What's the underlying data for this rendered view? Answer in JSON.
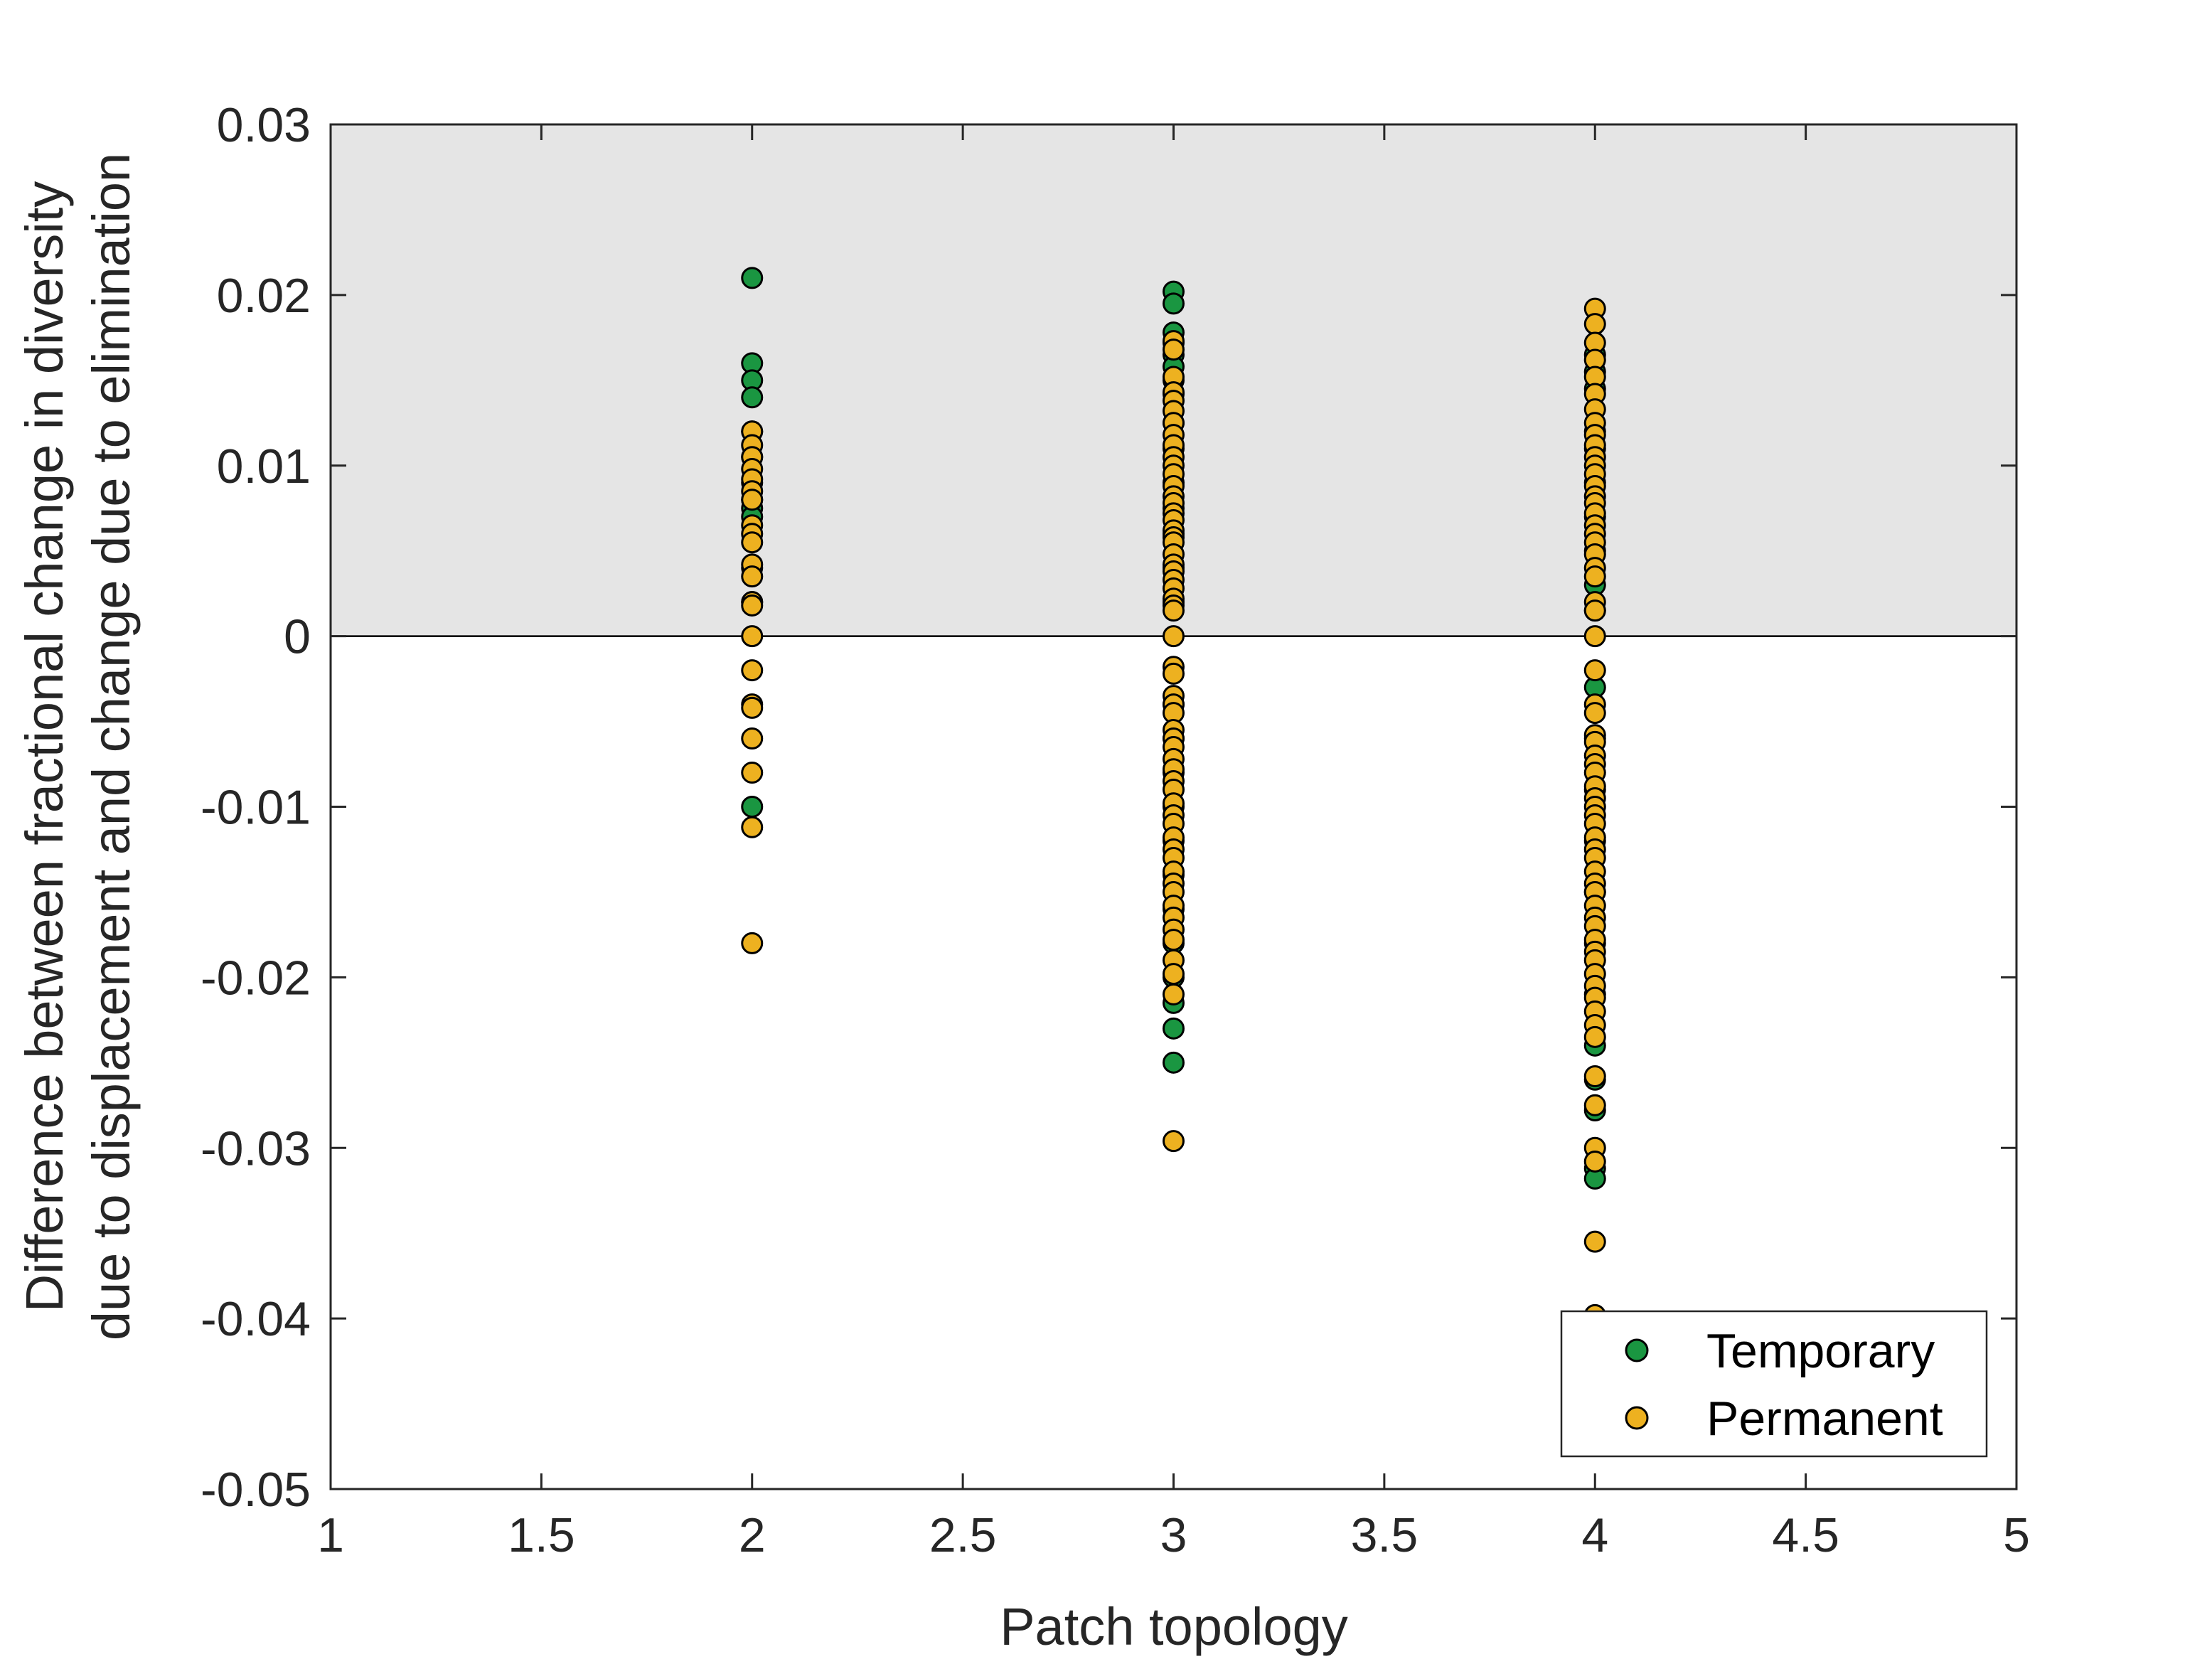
{
  "chart_data": {
    "type": "scatter",
    "title": "",
    "xlabel": "Patch topology",
    "ylabel_lines": [
      "Difference between fractional change in diversity",
      "due to displacement and change due to elimination"
    ],
    "xlim": [
      1,
      5
    ],
    "ylim": [
      -0.05,
      0.03
    ],
    "xticks": [
      1,
      1.5,
      2,
      2.5,
      3,
      3.5,
      4,
      4.5,
      5
    ],
    "xtick_labels": [
      "1",
      "1.5",
      "2",
      "2.5",
      "3",
      "3.5",
      "4",
      "4.5",
      "5"
    ],
    "yticks": [
      -0.05,
      -0.04,
      -0.03,
      -0.02,
      -0.01,
      0,
      0.01,
      0.02,
      0.03
    ],
    "ytick_labels": [
      "-0.05",
      "-0.04",
      "-0.03",
      "-0.02",
      "-0.01",
      "0",
      "0.01",
      "0.02",
      "0.03"
    ],
    "shaded_region": {
      "y_from": 0,
      "y_to": 0.03,
      "color": "#e5e5e5"
    },
    "reference_line_y": 0,
    "legend_position": "bottom-right",
    "grid": false,
    "series": [
      {
        "name": "Temporary",
        "color": "#1a9641",
        "points": [
          [
            2,
            0.021
          ],
          [
            2,
            0.016
          ],
          [
            2,
            0.015
          ],
          [
            2,
            0.014
          ],
          [
            2,
            0.012
          ],
          [
            2,
            0.0105
          ],
          [
            2,
            0.009
          ],
          [
            2,
            0.008
          ],
          [
            2,
            0.0075
          ],
          [
            2,
            0.007
          ],
          [
            2,
            0.004
          ],
          [
            2,
            0.002
          ],
          [
            2,
            -0.01
          ],
          [
            3,
            0.0202
          ],
          [
            3,
            0.0195
          ],
          [
            3,
            0.0178
          ],
          [
            3,
            0.0172
          ],
          [
            3,
            0.0165
          ],
          [
            3,
            0.0158
          ],
          [
            3,
            0.015
          ],
          [
            3,
            0.0142
          ],
          [
            3,
            0.0125
          ],
          [
            3,
            0.011
          ],
          [
            3,
            0.009
          ],
          [
            3,
            0.0075
          ],
          [
            3,
            0.006
          ],
          [
            3,
            0.004
          ],
          [
            3,
            0.002
          ],
          [
            3,
            -0.004
          ],
          [
            3,
            -0.006
          ],
          [
            3,
            -0.008
          ],
          [
            3,
            -0.01
          ],
          [
            3,
            -0.012
          ],
          [
            3,
            -0.014
          ],
          [
            3,
            -0.016
          ],
          [
            3,
            -0.018
          ],
          [
            3,
            -0.02
          ],
          [
            3,
            -0.0215
          ],
          [
            3,
            -0.023
          ],
          [
            3,
            -0.025
          ],
          [
            4,
            0.0165
          ],
          [
            4,
            0.0155
          ],
          [
            4,
            0.0145
          ],
          [
            4,
            0.012
          ],
          [
            4,
            0.011
          ],
          [
            4,
            0.009
          ],
          [
            4,
            0.007
          ],
          [
            4,
            0.005
          ],
          [
            4,
            0.003
          ],
          [
            4,
            0.0015
          ],
          [
            4,
            -0.003
          ],
          [
            4,
            -0.006
          ],
          [
            4,
            -0.009
          ],
          [
            4,
            -0.012
          ],
          [
            4,
            -0.015
          ],
          [
            4,
            -0.018
          ],
          [
            4,
            -0.021
          ],
          [
            4,
            -0.024
          ],
          [
            4,
            -0.026
          ],
          [
            4,
            -0.0278
          ],
          [
            4,
            -0.0312
          ],
          [
            4,
            -0.0318
          ]
        ]
      },
      {
        "name": "Permanent",
        "color": "#edb120",
        "points": [
          [
            2,
            0.012
          ],
          [
            2,
            0.0112
          ],
          [
            2,
            0.0105
          ],
          [
            2,
            0.0098
          ],
          [
            2,
            0.0092
          ],
          [
            2,
            0.0085
          ],
          [
            2,
            0.008
          ],
          [
            2,
            0.0065
          ],
          [
            2,
            0.006
          ],
          [
            2,
            0.0055
          ],
          [
            2,
            0.0042
          ],
          [
            2,
            0.0035
          ],
          [
            2,
            0.002
          ],
          [
            2,
            0.0018
          ],
          [
            2,
            0.0
          ],
          [
            2,
            -0.002
          ],
          [
            2,
            -0.004
          ],
          [
            2,
            -0.0042
          ],
          [
            2,
            -0.006
          ],
          [
            2,
            -0.008
          ],
          [
            2,
            -0.0112
          ],
          [
            2,
            -0.018
          ],
          [
            3,
            0.0173
          ],
          [
            3,
            0.0168
          ],
          [
            3,
            0.0152
          ],
          [
            3,
            0.0143
          ],
          [
            3,
            0.0138
          ],
          [
            3,
            0.0132
          ],
          [
            3,
            0.0125
          ],
          [
            3,
            0.0118
          ],
          [
            3,
            0.0112
          ],
          [
            3,
            0.0105
          ],
          [
            3,
            0.01
          ],
          [
            3,
            0.0095
          ],
          [
            3,
            0.0088
          ],
          [
            3,
            0.0082
          ],
          [
            3,
            0.0078
          ],
          [
            3,
            0.0072
          ],
          [
            3,
            0.0068
          ],
          [
            3,
            0.0062
          ],
          [
            3,
            0.0058
          ],
          [
            3,
            0.0055
          ],
          [
            3,
            0.0048
          ],
          [
            3,
            0.0042
          ],
          [
            3,
            0.0038
          ],
          [
            3,
            0.0033
          ],
          [
            3,
            0.0028
          ],
          [
            3,
            0.0022
          ],
          [
            3,
            0.0018
          ],
          [
            3,
            0.0015
          ],
          [
            3,
            0.0
          ],
          [
            3,
            -0.0018
          ],
          [
            3,
            -0.0022
          ],
          [
            3,
            -0.0035
          ],
          [
            3,
            -0.004
          ],
          [
            3,
            -0.0045
          ],
          [
            3,
            -0.0055
          ],
          [
            3,
            -0.006
          ],
          [
            3,
            -0.0065
          ],
          [
            3,
            -0.0072
          ],
          [
            3,
            -0.0078
          ],
          [
            3,
            -0.0085
          ],
          [
            3,
            -0.009
          ],
          [
            3,
            -0.0098
          ],
          [
            3,
            -0.0105
          ],
          [
            3,
            -0.011
          ],
          [
            3,
            -0.0118
          ],
          [
            3,
            -0.0125
          ],
          [
            3,
            -0.013
          ],
          [
            3,
            -0.0138
          ],
          [
            3,
            -0.0145
          ],
          [
            3,
            -0.015
          ],
          [
            3,
            -0.0158
          ],
          [
            3,
            -0.0165
          ],
          [
            3,
            -0.0172
          ],
          [
            3,
            -0.0178
          ],
          [
            3,
            -0.019
          ],
          [
            3,
            -0.0198
          ],
          [
            3,
            -0.021
          ],
          [
            3,
            -0.0296
          ],
          [
            4,
            0.0192
          ],
          [
            4,
            0.0183
          ],
          [
            4,
            0.0172
          ],
          [
            4,
            0.0162
          ],
          [
            4,
            0.0152
          ],
          [
            4,
            0.0142
          ],
          [
            4,
            0.0133
          ],
          [
            4,
            0.0125
          ],
          [
            4,
            0.0118
          ],
          [
            4,
            0.0112
          ],
          [
            4,
            0.0105
          ],
          [
            4,
            0.01
          ],
          [
            4,
            0.0095
          ],
          [
            4,
            0.0088
          ],
          [
            4,
            0.0082
          ],
          [
            4,
            0.0078
          ],
          [
            4,
            0.0072
          ],
          [
            4,
            0.0065
          ],
          [
            4,
            0.006
          ],
          [
            4,
            0.0055
          ],
          [
            4,
            0.0048
          ],
          [
            4,
            0.004
          ],
          [
            4,
            0.0035
          ],
          [
            4,
            0.002
          ],
          [
            4,
            0.0015
          ],
          [
            4,
            0.0
          ],
          [
            4,
            -0.002
          ],
          [
            4,
            -0.004
          ],
          [
            4,
            -0.0045
          ],
          [
            4,
            -0.0058
          ],
          [
            4,
            -0.0062
          ],
          [
            4,
            -0.007
          ],
          [
            4,
            -0.0075
          ],
          [
            4,
            -0.008
          ],
          [
            4,
            -0.0088
          ],
          [
            4,
            -0.0095
          ],
          [
            4,
            -0.01
          ],
          [
            4,
            -0.0105
          ],
          [
            4,
            -0.011
          ],
          [
            4,
            -0.0118
          ],
          [
            4,
            -0.0125
          ],
          [
            4,
            -0.013
          ],
          [
            4,
            -0.0138
          ],
          [
            4,
            -0.0145
          ],
          [
            4,
            -0.015
          ],
          [
            4,
            -0.0158
          ],
          [
            4,
            -0.0165
          ],
          [
            4,
            -0.017
          ],
          [
            4,
            -0.0178
          ],
          [
            4,
            -0.0185
          ],
          [
            4,
            -0.019
          ],
          [
            4,
            -0.0198
          ],
          [
            4,
            -0.0205
          ],
          [
            4,
            -0.0212
          ],
          [
            4,
            -0.022
          ],
          [
            4,
            -0.0228
          ],
          [
            4,
            -0.0235
          ],
          [
            4,
            -0.0258
          ],
          [
            4,
            -0.0275
          ],
          [
            4,
            -0.03
          ],
          [
            4,
            -0.0308
          ],
          [
            4,
            -0.0355
          ],
          [
            4,
            -0.0398
          ]
        ]
      }
    ]
  }
}
